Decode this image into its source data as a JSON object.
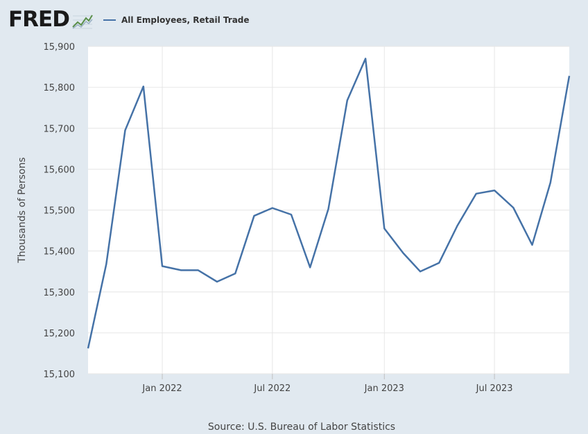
{
  "logo": {
    "text": "FRED"
  },
  "legend": {
    "label": "All Employees, Retail Trade",
    "color": "#4572a7"
  },
  "source": "Source: U.S. Bureau of Labor Statistics",
  "chart_data": {
    "type": "line",
    "title": "",
    "xlabel": "",
    "ylabel": "Thousands of Persons",
    "ylim": [
      15100,
      15900
    ],
    "yticks": [
      "15,100",
      "15,200",
      "15,300",
      "15,400",
      "15,500",
      "15,600",
      "15,700",
      "15,800",
      "15,900"
    ],
    "xticks": [
      {
        "label": "Jan 2022",
        "date": "2022-01-01"
      },
      {
        "label": "Jul 2022",
        "date": "2022-07-01"
      },
      {
        "label": "Jan 2023",
        "date": "2023-01-01"
      },
      {
        "label": "Jul 2023",
        "date": "2023-07-01"
      }
    ],
    "xlim": [
      "2021-09-01",
      "2023-11-01"
    ],
    "grid": true,
    "series": [
      {
        "name": "All Employees, Retail Trade",
        "color": "#4572a7",
        "x": [
          "2021-09-01",
          "2021-10-01",
          "2021-11-01",
          "2021-12-01",
          "2022-01-01",
          "2022-02-01",
          "2022-03-01",
          "2022-04-01",
          "2022-05-01",
          "2022-06-01",
          "2022-07-01",
          "2022-08-01",
          "2022-09-01",
          "2022-10-01",
          "2022-11-01",
          "2022-12-01",
          "2023-01-01",
          "2023-02-01",
          "2023-03-01",
          "2023-04-01",
          "2023-05-01",
          "2023-06-01",
          "2023-07-01",
          "2023-08-01",
          "2023-09-01",
          "2023-10-01",
          "2023-11-01"
        ],
        "values": [
          15162,
          15368,
          15695,
          15802,
          15363,
          15353,
          15353,
          15325,
          15345,
          15486,
          15505,
          15489,
          15360,
          15503,
          15768,
          15870,
          15455,
          15395,
          15350,
          15371,
          15462,
          15540,
          15548,
          15506,
          15415,
          15567,
          15828
        ]
      }
    ]
  }
}
